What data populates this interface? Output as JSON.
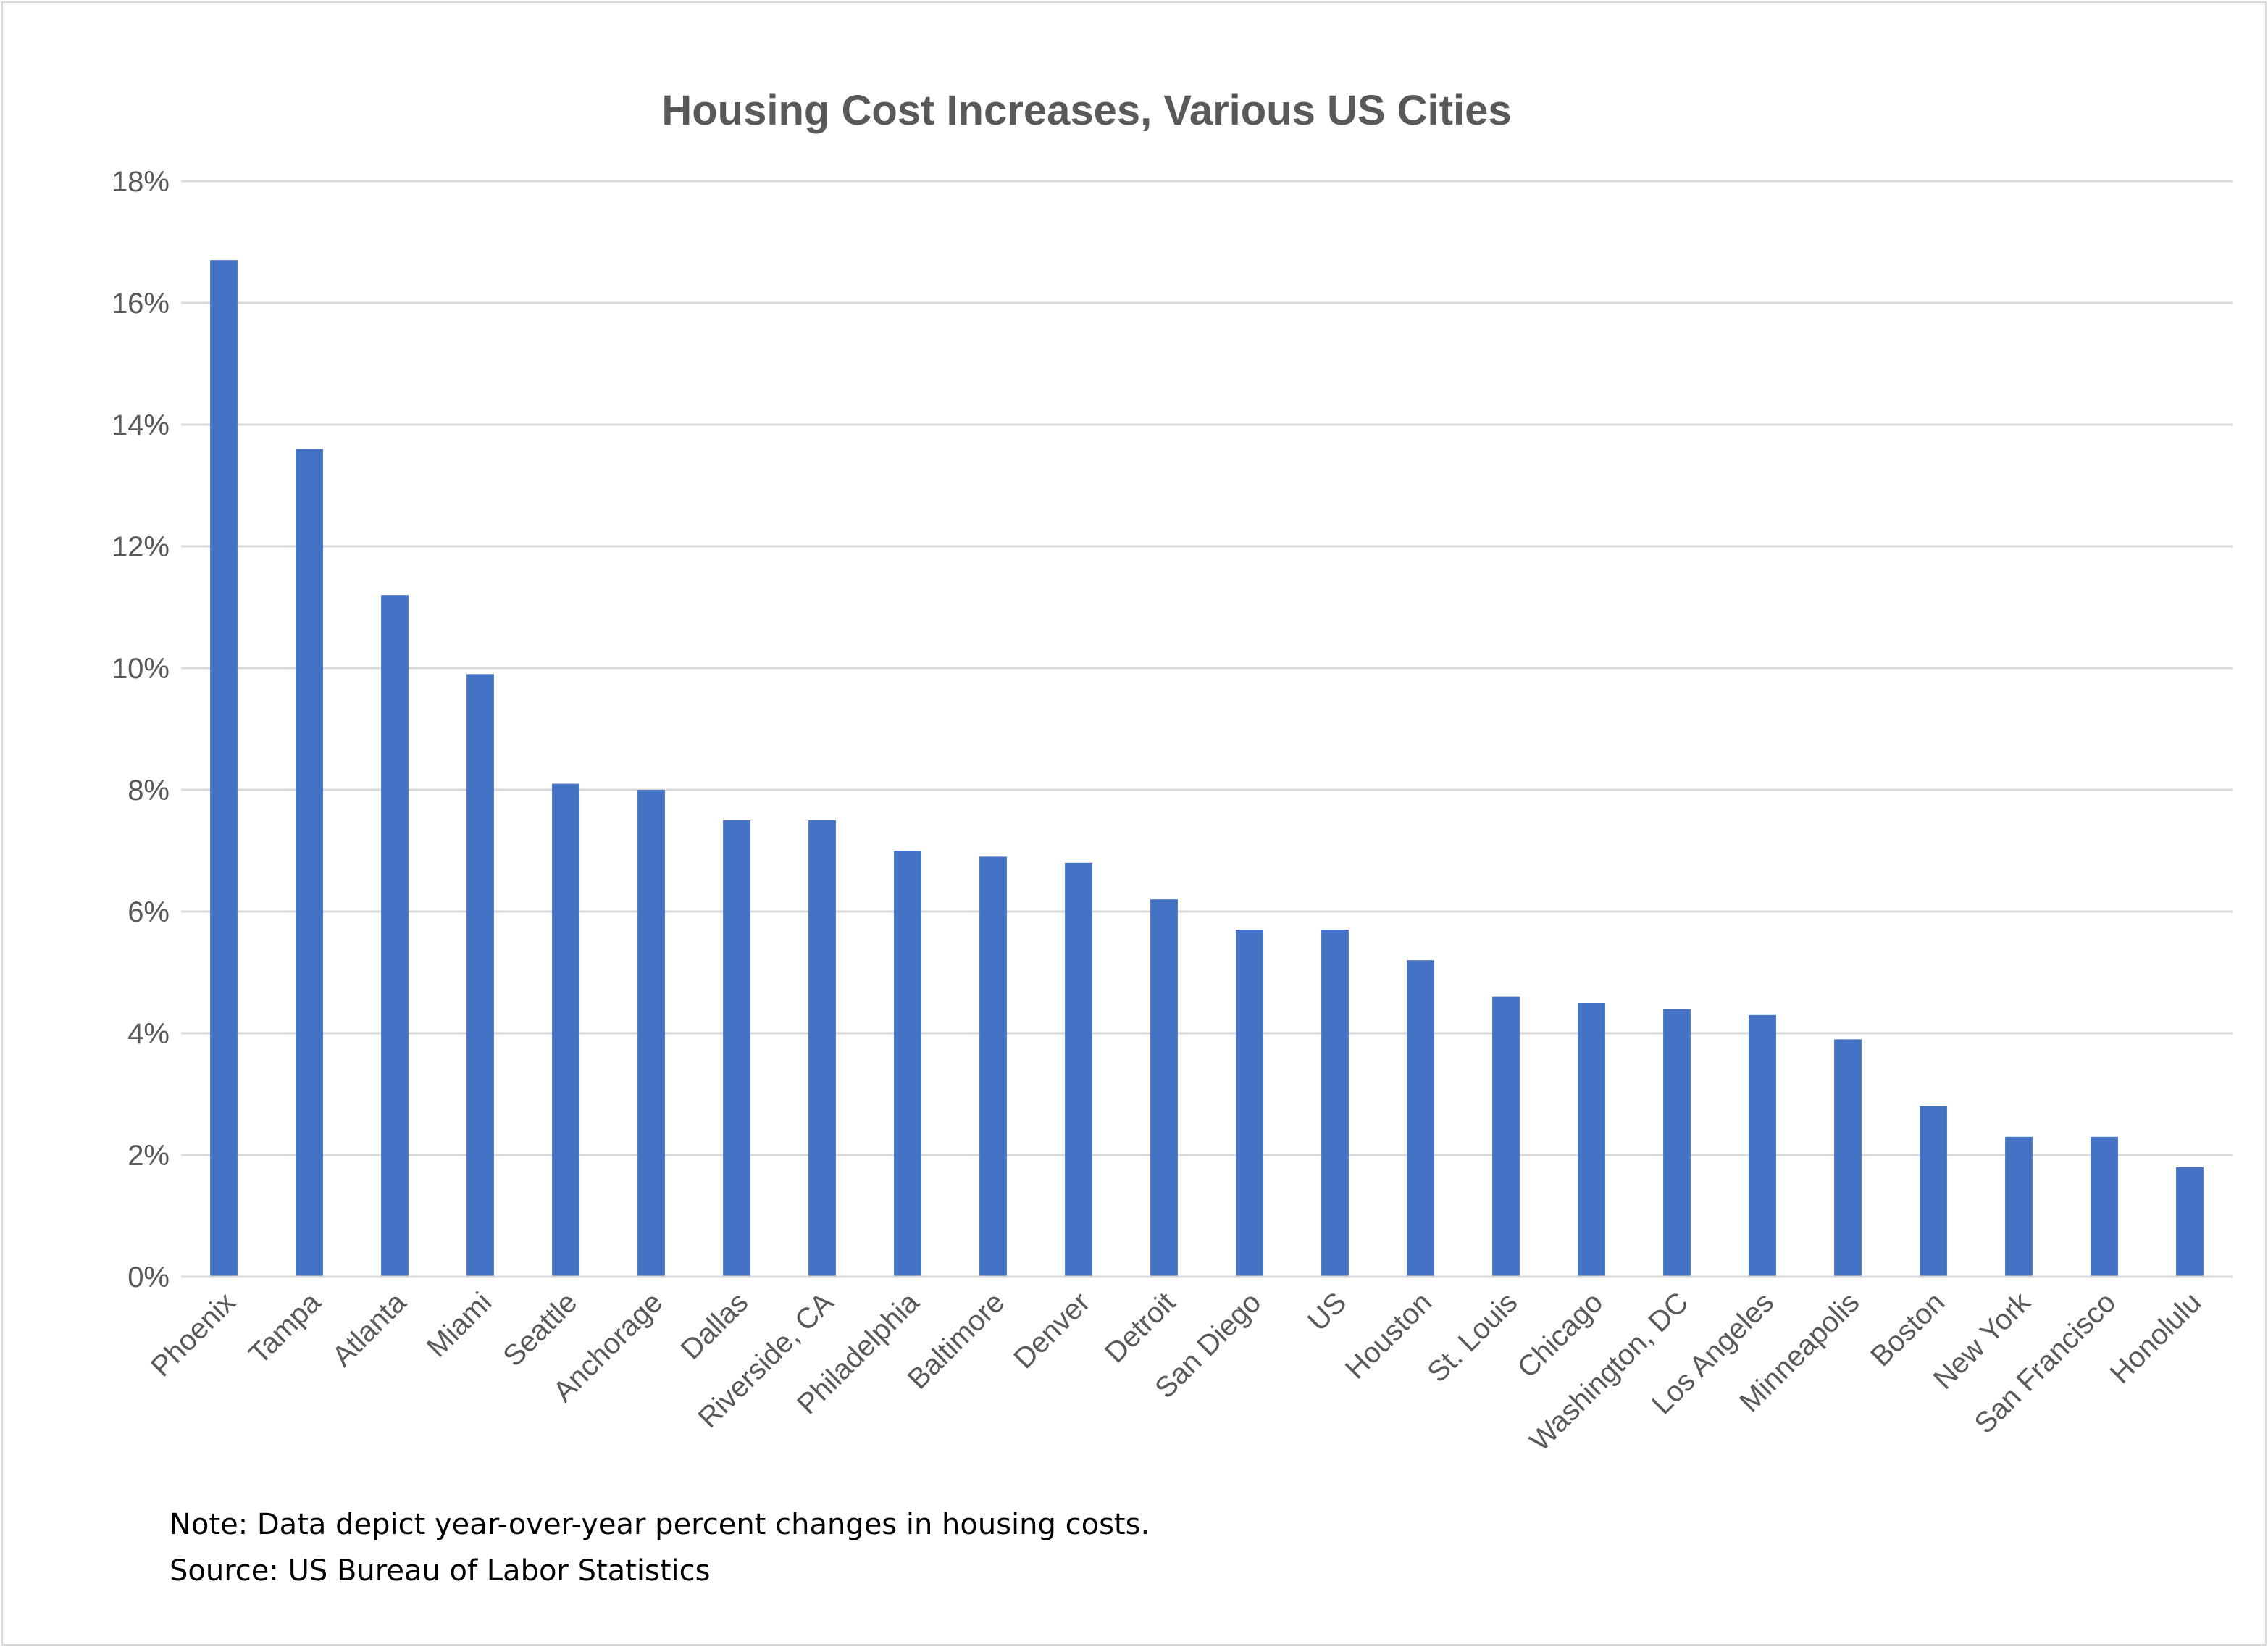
{
  "chart_data": {
    "type": "bar",
    "title": "Housing Cost Increases, Various US Cities",
    "xlabel": "",
    "ylabel": "",
    "categories": [
      "Phoenix",
      "Tampa",
      "Atlanta",
      "Miami",
      "Seattle",
      "Anchorage",
      "Dallas",
      "Riverside, CA",
      "Philadelphia",
      "Baltimore",
      "Denver",
      "Detroit",
      "San Diego",
      "US",
      "Houston",
      "St. Louis",
      "Chicago",
      "Washington, DC",
      "Los Angeles",
      "Minneapolis",
      "Boston",
      "New York",
      "San Francisco",
      "Honolulu"
    ],
    "values": [
      16.7,
      13.6,
      11.2,
      9.9,
      8.1,
      8.0,
      7.5,
      7.5,
      7.0,
      6.9,
      6.8,
      6.2,
      5.7,
      5.7,
      5.2,
      4.6,
      4.5,
      4.4,
      4.3,
      3.9,
      2.8,
      2.3,
      2.3,
      1.8
    ],
    "ylim": [
      0,
      18
    ],
    "yticks": [
      0,
      2,
      4,
      6,
      8,
      10,
      12,
      14,
      16,
      18
    ],
    "ytick_labels": [
      "0%",
      "2%",
      "4%",
      "6%",
      "8%",
      "10%",
      "12%",
      "14%",
      "16%",
      "18%"
    ],
    "grid": true,
    "legend": "none",
    "bar_color": "#4472c4",
    "grid_color": "#d9d9d9",
    "text_color": "#595959"
  },
  "notes": {
    "note": "Note: Data depict year-over-year percent changes in housing costs.",
    "source": "Source: US Bureau of Labor Statistics"
  }
}
